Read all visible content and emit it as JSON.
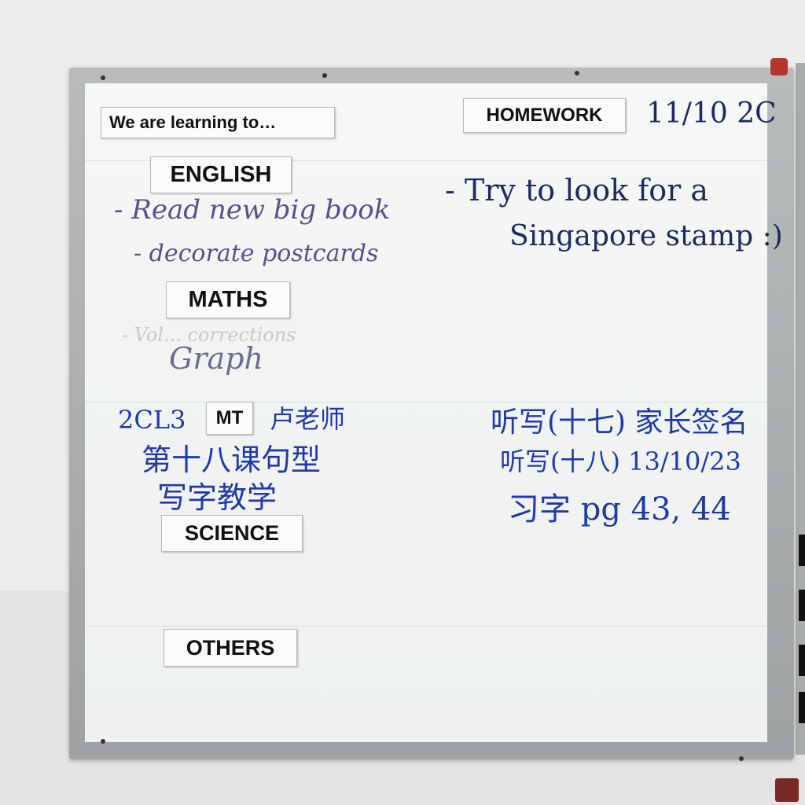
{
  "board": {
    "header_left": "We are learning to…",
    "header_right": "HOMEWORK",
    "date": "11/10 2C"
  },
  "subjects": {
    "english": "ENGLISH",
    "maths": "MATHS",
    "mt": "MT",
    "science": "SCIENCE",
    "others": "OTHERS"
  },
  "english_notes": [
    "- Read new big book",
    "- decorate postcards"
  ],
  "maths_notes": [
    "Graph"
  ],
  "erased_notes": [
    "- Vol... corrections"
  ],
  "mt_notes": {
    "class": "2CL3",
    "teacher": "卢老师",
    "lines": [
      "第十八课句型",
      "写字教学"
    ]
  },
  "homework_notes": [
    "- Try to look for a",
    "Singapore stamp :)"
  ],
  "mt_homework": [
    "听写(十七) 家长签名",
    "听写(十八) 13/10/23",
    "习字 pg 43, 44"
  ],
  "colors": {
    "purple_marker": "#5a4f8a",
    "navy_marker": "#1d2a5f",
    "blue_marker": "#1f3aa6",
    "frame": "#a9acad"
  }
}
